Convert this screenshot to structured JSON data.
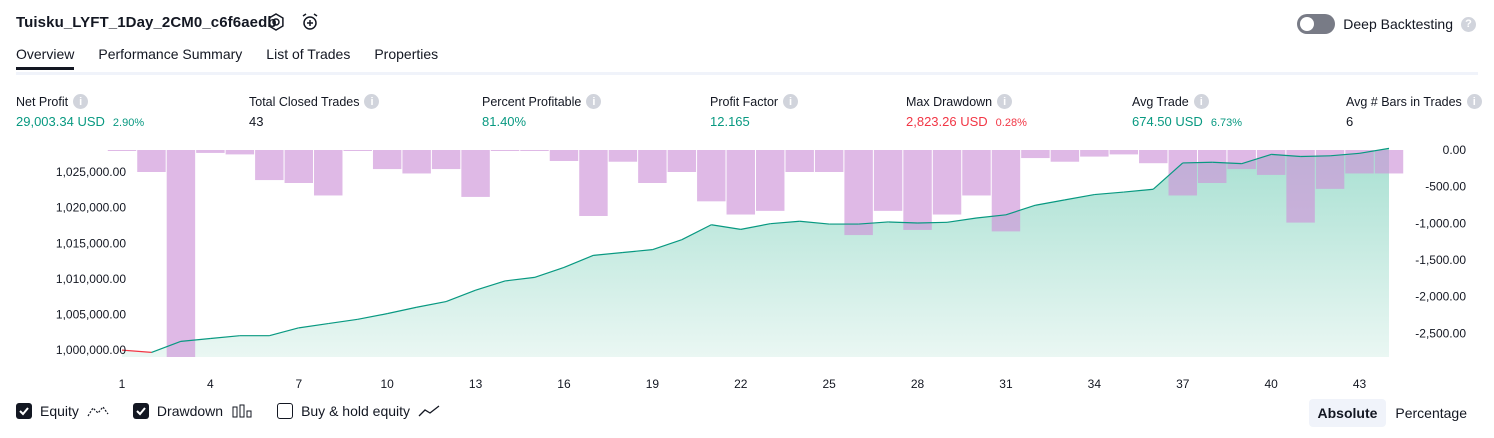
{
  "header": {
    "title": "Tuisku_LYFT_1Day_2CM0_c6f6aedb",
    "settings_icon": "gear-icon",
    "alert_icon": "add-alert-icon",
    "deep_backtesting_label": "Deep Backtesting",
    "deep_backtesting_on": false
  },
  "tabs": [
    {
      "label": "Overview",
      "active": true
    },
    {
      "label": "Performance Summary",
      "active": false
    },
    {
      "label": "List of Trades",
      "active": false
    },
    {
      "label": "Properties",
      "active": false
    }
  ],
  "metrics": [
    {
      "label": "Net Profit",
      "value": "29,003.34 USD",
      "pct": "2.90%",
      "color": "green"
    },
    {
      "label": "Total Closed Trades",
      "value": "43",
      "pct": "",
      "color": "dark"
    },
    {
      "label": "Percent Profitable",
      "value": "81.40%",
      "pct": "",
      "color": "green"
    },
    {
      "label": "Profit Factor",
      "value": "12.165",
      "pct": "",
      "color": "green"
    },
    {
      "label": "Max Drawdown",
      "value": "2,823.26 USD",
      "pct": "0.28%",
      "color": "red"
    },
    {
      "label": "Avg Trade",
      "value": "674.50 USD",
      "pct": "6.73%",
      "color": "green"
    },
    {
      "label": "Avg # Bars in Trades",
      "value": "6",
      "pct": "",
      "color": "dark"
    }
  ],
  "chart_data": {
    "type": "line",
    "x": [
      1,
      2,
      3,
      4,
      5,
      6,
      7,
      8,
      9,
      10,
      11,
      12,
      13,
      14,
      15,
      16,
      17,
      18,
      19,
      20,
      21,
      22,
      23,
      24,
      25,
      26,
      27,
      28,
      29,
      30,
      31,
      32,
      33,
      34,
      35,
      36,
      37,
      38,
      39,
      40,
      41,
      42,
      43,
      44
    ],
    "x_ticks": [
      "1",
      "4",
      "7",
      "10",
      "13",
      "16",
      "19",
      "22",
      "25",
      "28",
      "31",
      "34",
      "37",
      "40",
      "43"
    ],
    "left_axis": {
      "ticks": [
        "1,000,000.00",
        "1,005,000.00",
        "1,010,000.00",
        "1,015,000.00",
        "1,020,000.00",
        "1,025,000.00"
      ],
      "range": [
        999000,
        1028400
      ]
    },
    "right_axis": {
      "ticks": [
        "0.00",
        "-500.00",
        "-1,000.00",
        "-1,500.00",
        "-2,000.00",
        "-2,500.00"
      ],
      "range": [
        -2823,
        0
      ]
    },
    "series": [
      {
        "name": "Equity",
        "color": "#089981",
        "values": [
          999970,
          999650,
          1001200,
          1001600,
          1002000,
          1002000,
          1003100,
          1003700,
          1004300,
          1005100,
          1006000,
          1006800,
          1008400,
          1009700,
          1010200,
          1011600,
          1013300,
          1013700,
          1014100,
          1015500,
          1017600,
          1016950,
          1017750,
          1018100,
          1017700,
          1017700,
          1018000,
          1017850,
          1017950,
          1018550,
          1019000,
          1020350,
          1021100,
          1021850,
          1022200,
          1022600,
          1026300,
          1026400,
          1026200,
          1027500,
          1027200,
          1027300,
          1027650,
          1028350
        ]
      },
      {
        "name": "Drawdown",
        "color": "#ce93d8",
        "values": [
          0,
          -300,
          -2823,
          -40,
          -60,
          -410,
          -450,
          -620,
          0,
          -260,
          -320,
          -260,
          -640,
          0,
          0,
          -150,
          -900,
          -160,
          -450,
          -300,
          -700,
          -880,
          -830,
          -300,
          -300,
          -1160,
          -830,
          -1090,
          -880,
          -620,
          -1110,
          -110,
          -160,
          -90,
          -60,
          -180,
          -620,
          -450,
          -260,
          -340,
          -990,
          -530,
          -320,
          -320
        ]
      }
    ]
  },
  "legend": [
    {
      "label": "Equity",
      "checked": true,
      "icon": "equity-line-icon"
    },
    {
      "label": "Drawdown",
      "checked": true,
      "icon": "drawdown-bars-icon"
    },
    {
      "label": "Buy & hold equity",
      "checked": false,
      "icon": "buy-hold-line-icon"
    }
  ],
  "scale_toggle": {
    "options": [
      "Absolute",
      "Percentage"
    ],
    "selected": "Absolute"
  }
}
